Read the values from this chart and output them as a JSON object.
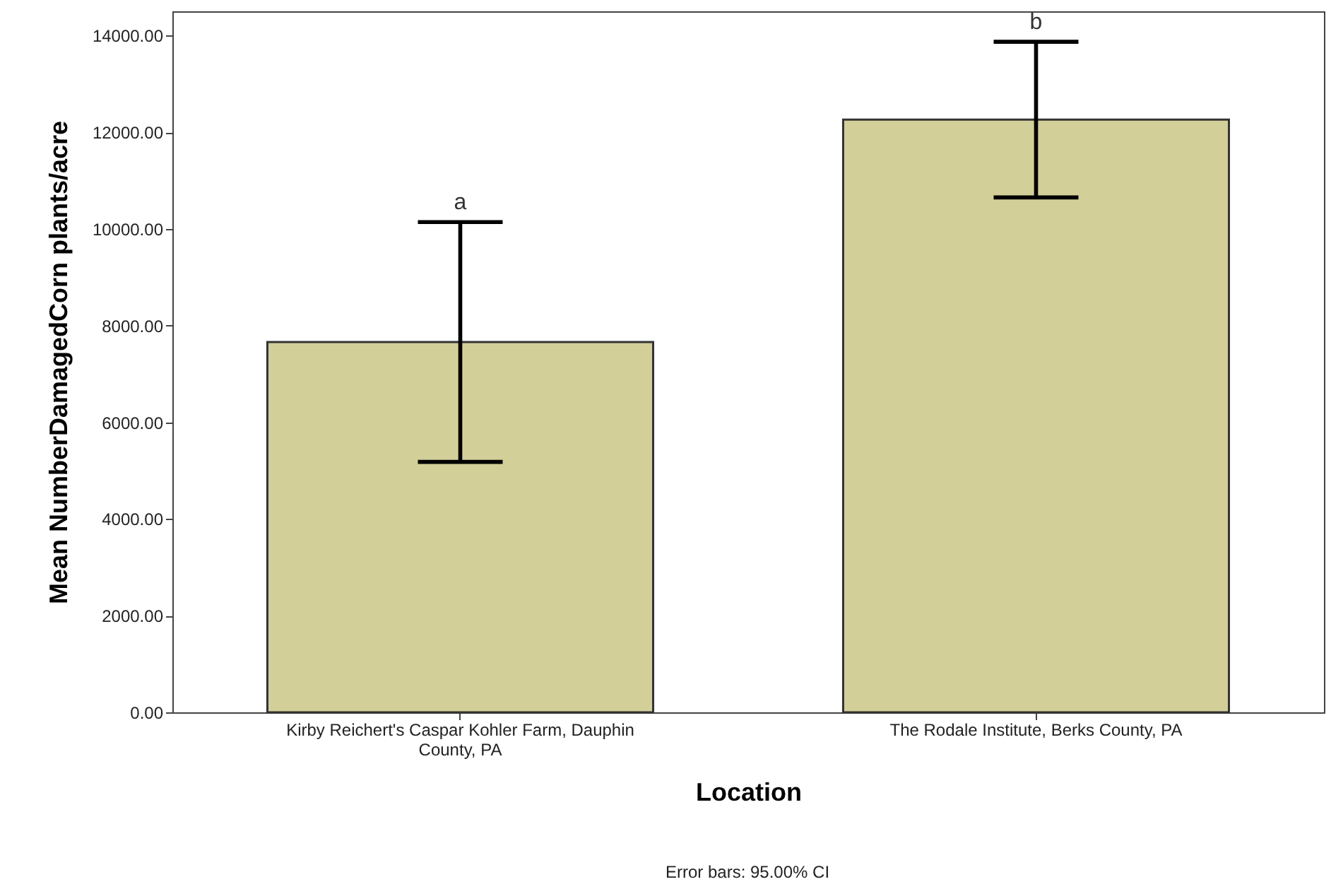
{
  "chart_data": {
    "type": "bar",
    "categories": [
      "Kirby Reichert's Caspar Kohler Farm, Dauphin County, PA",
      "The Rodale Institute, Berks County, PA"
    ],
    "values": [
      7660,
      12260
    ],
    "errors": [
      2480,
      1610
    ],
    "color": "#d3cf99",
    "xlabel": "Location",
    "ylabel": "Mean NumberDamagedCorn plants/acre",
    "ylim": [
      0,
      14500
    ],
    "yticks": [
      {
        "value": 0,
        "label": "0.00"
      },
      {
        "value": 2000,
        "label": "2000.00"
      },
      {
        "value": 4000,
        "label": "4000.00"
      },
      {
        "value": 6000,
        "label": "6000.00"
      },
      {
        "value": 8000,
        "label": "8000.00"
      },
      {
        "value": 10000,
        "label": "10000.00"
      },
      {
        "value": 12000,
        "label": "12000.00"
      },
      {
        "value": 14000,
        "label": "14000.00"
      }
    ],
    "annotations": [
      "a",
      "b",
      "Error bars: 95.00% CI"
    ],
    "grid": false
  }
}
